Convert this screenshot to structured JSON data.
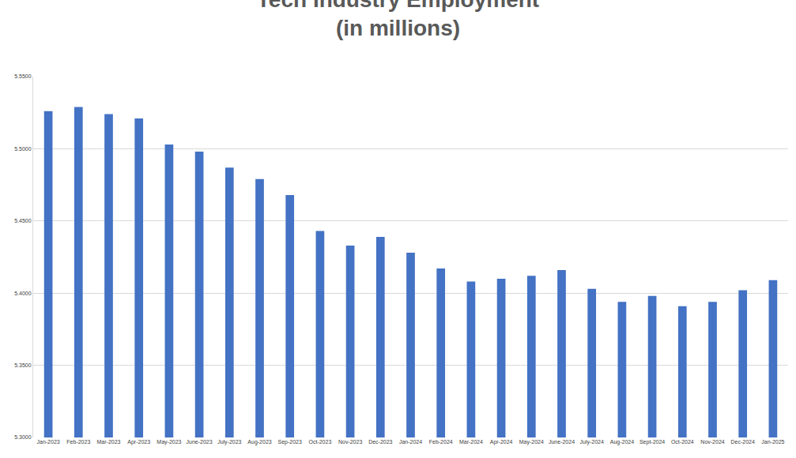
{
  "chart_data": {
    "type": "bar",
    "title": "Tech Industry Employment\n(in millions)",
    "categories": [
      "Jan-2023",
      "Feb-2023",
      "Mar-2023",
      "Apr-2023",
      "May-2023",
      "June-2023",
      "July-2023",
      "Aug-2023",
      "Sep-2023",
      "Oct-2023",
      "Nov-2023",
      "Dec-2023",
      "Jan-2024",
      "Feb-2024",
      "Mar-2024",
      "Apr-2024",
      "May-2024",
      "June-2024",
      "July-2024",
      "Aug-2024",
      "Sept-2024",
      "Oct-2024",
      "Nov-2024",
      "Dec-2024",
      "Jan-2025"
    ],
    "values": [
      5.526,
      5.529,
      5.524,
      5.521,
      5.503,
      5.498,
      5.487,
      5.479,
      5.468,
      5.443,
      5.433,
      5.439,
      5.428,
      5.417,
      5.408,
      5.41,
      5.412,
      5.416,
      5.403,
      5.394,
      5.398,
      5.391,
      5.394,
      5.402,
      5.409
    ],
    "color": "#4472c4",
    "ylim": [
      5.3,
      5.55
    ],
    "yticks": [
      {
        "value": 5.3,
        "label": "5.3000"
      },
      {
        "value": 5.35,
        "label": "5.3500"
      },
      {
        "value": 5.4,
        "label": "5.4000"
      },
      {
        "value": 5.45,
        "label": "5.4500"
      },
      {
        "value": 5.5,
        "label": "5.5000"
      },
      {
        "value": 5.55,
        "label": "5.5500"
      }
    ],
    "grid": true
  }
}
